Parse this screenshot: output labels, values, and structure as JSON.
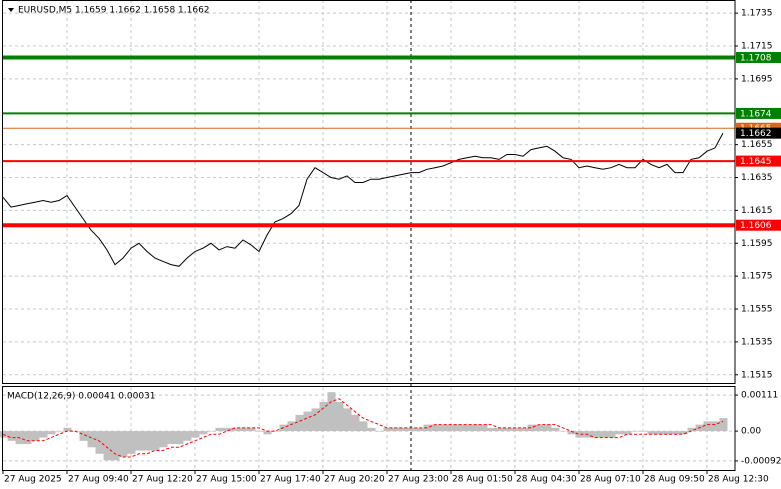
{
  "chart_data": [
    {
      "type": "line",
      "title": "EURUSD,M5  1.1659 1.1662 1.1658 1.1662",
      "series": [
        {
          "color": "#000000",
          "values": [
            1.1623,
            1.1617,
            1.1618,
            1.1619,
            1.162,
            1.1621,
            1.162,
            1.1621,
            1.1624,
            1.1617,
            1.161,
            1.1603,
            1.1598,
            1.1591,
            1.1582,
            1.1586,
            1.1592,
            1.1595,
            1.159,
            1.1586,
            1.1584,
            1.1582,
            1.1581,
            1.1586,
            1.159,
            1.1592,
            1.1595,
            1.1591,
            1.1593,
            1.1592,
            1.1597,
            1.1594,
            1.159,
            1.16,
            1.1608,
            1.161,
            1.1613,
            1.1618,
            1.1634,
            1.1641,
            1.1638,
            1.1635,
            1.1634,
            1.1636,
            1.1632,
            1.1632,
            1.1634,
            1.1634,
            1.1635,
            1.1636,
            1.1637,
            1.1638,
            1.1638,
            1.164,
            1.1641,
            1.1642,
            1.1644,
            1.1646,
            1.1647,
            1.1648,
            1.1647,
            1.1647,
            1.1646,
            1.1649,
            1.1649,
            1.1648,
            1.1652,
            1.1653,
            1.1654,
            1.1651,
            1.1647,
            1.1646,
            1.1641,
            1.1642,
            1.1641,
            1.164,
            1.1641,
            1.1643,
            1.1641,
            1.1641,
            1.1646,
            1.1643,
            1.1641,
            1.1643,
            1.1638,
            1.1638,
            1.1646,
            1.1647,
            1.1651,
            1.1653,
            1.1662
          ]
        }
      ],
      "levels": [
        {
          "value": 1.1708,
          "color": "#008000"
        },
        {
          "value": 1.1674,
          "color": "#008000"
        },
        {
          "value": 1.1665,
          "color": "#d2691e"
        },
        {
          "value": 1.1645,
          "color": "#ff0000"
        },
        {
          "value": 1.1606,
          "color": "#ff0000"
        }
      ],
      "xlim": [
        0,
        91.5
      ],
      "xticks": [
        {
          "value": 0,
          "label": "27 Aug 2025"
        },
        {
          "value": 8,
          "label": "27 Aug 09:40"
        },
        {
          "value": 16,
          "label": "27 Aug 12:20"
        },
        {
          "value": 24,
          "label": "27 Aug 15:00"
        },
        {
          "value": 32,
          "label": "27 Aug 17:40"
        },
        {
          "value": 40,
          "label": "27 Aug 20:20"
        },
        {
          "value": 48,
          "label": "27 Aug 23:00"
        },
        {
          "value": 56,
          "label": "28 Aug 01:50"
        },
        {
          "value": 64,
          "label": "28 Aug 04:30"
        },
        {
          "value": 72,
          "label": "28 Aug 07:10"
        },
        {
          "value": 80,
          "label": "28 Aug 09:50"
        },
        {
          "value": 88,
          "label": "28 Aug 12:30"
        }
      ],
      "ylim": [
        1.151,
        1.1743
      ],
      "yticks": [
        1.1735,
        1.1715,
        1.1695,
        1.1655,
        1.1635,
        1.1615,
        1.1595,
        1.1575,
        1.1555,
        1.1535,
        1.1515
      ],
      "grid": true
    },
    {
      "type": "bar",
      "title": "MACD(12,26,9) 0.00041 0.00031",
      "series": [
        {
          "type": "bar",
          "color": "#c0c0c0",
          "values": [
            -0.0002,
            -0.0003,
            -0.0004,
            -0.0004,
            -0.0003,
            -0.0002,
            -0.0001,
            0.0,
            0.0001,
            0.0,
            -0.0003,
            -0.0005,
            -0.0007,
            -0.0009,
            -0.0009,
            -0.0008,
            -0.0007,
            -0.0006,
            -0.0006,
            -0.0006,
            -0.0005,
            -0.0004,
            -0.0004,
            -0.0003,
            -0.0002,
            -0.0001,
            0.0,
            0.0001,
            0.0001,
            0.0001,
            0.0001,
            0.0001,
            0.0,
            -0.0001,
            0.0,
            0.0002,
            0.0003,
            0.0005,
            0.0006,
            0.0007,
            0.0009,
            0.0012,
            0.0009,
            0.0007,
            0.0005,
            0.0003,
            0.0001,
            0.0,
            0.0001,
            0.0001,
            0.0001,
            0.0001,
            0.0001,
            0.0002,
            0.0002,
            0.0002,
            0.0002,
            0.0002,
            0.0002,
            0.0002,
            0.0002,
            0.0001,
            0.0001,
            0.0001,
            0.0001,
            0.0001,
            0.0002,
            0.0002,
            0.0002,
            0.0001,
            0.0,
            -0.0001,
            -0.0002,
            -0.0002,
            -0.0002,
            -0.0002,
            -0.0002,
            -0.0001,
            -0.0001,
            0.0,
            0.0,
            -0.0001,
            -0.0001,
            -0.0001,
            -0.0001,
            -0.0001,
            0.0001,
            0.0002,
            0.0003,
            0.0003,
            0.0004
          ]
        },
        {
          "type": "line",
          "color": "#ff0000",
          "dashed": true,
          "values": [
            -0.0001,
            -0.0002,
            -0.0002,
            -0.0003,
            -0.0003,
            -0.0003,
            -0.0002,
            -0.0001,
            0.0,
            0.0,
            -0.0001,
            -0.0002,
            -0.0003,
            -0.0005,
            -0.0007,
            -0.0008,
            -0.0008,
            -0.0007,
            -0.0007,
            -0.0006,
            -0.0006,
            -0.0005,
            -0.0005,
            -0.0004,
            -0.0003,
            -0.0002,
            -0.0001,
            -0.0001,
            0.0,
            0.0001,
            0.0001,
            0.0001,
            0.0001,
            0.0,
            0.0,
            0.0001,
            0.0002,
            0.0003,
            0.0004,
            0.0005,
            0.0007,
            0.0009,
            0.001,
            0.0008,
            0.0006,
            0.0004,
            0.0003,
            0.0002,
            0.0001,
            0.0001,
            0.0001,
            0.0001,
            0.0001,
            0.0001,
            0.0002,
            0.0002,
            0.0002,
            0.0002,
            0.0002,
            0.0002,
            0.0002,
            0.0002,
            0.0001,
            0.0001,
            0.0001,
            0.0001,
            0.0001,
            0.0002,
            0.0002,
            0.0002,
            0.0001,
            0.0,
            -0.0001,
            -0.0001,
            -0.0002,
            -0.0002,
            -0.0002,
            -0.0002,
            -0.0001,
            -0.0001,
            -0.0001,
            -0.0001,
            -0.0001,
            -0.0001,
            -0.0001,
            -0.0001,
            0.0,
            0.0001,
            0.0002,
            0.0002,
            0.0003
          ]
        }
      ],
      "ylim": [
        -0.0012,
        0.00136
      ],
      "yticks": [
        0.00111,
        {
          "value": 0,
          "label": "0.00"
        },
        -0.00092
      ],
      "grid": true
    }
  ]
}
